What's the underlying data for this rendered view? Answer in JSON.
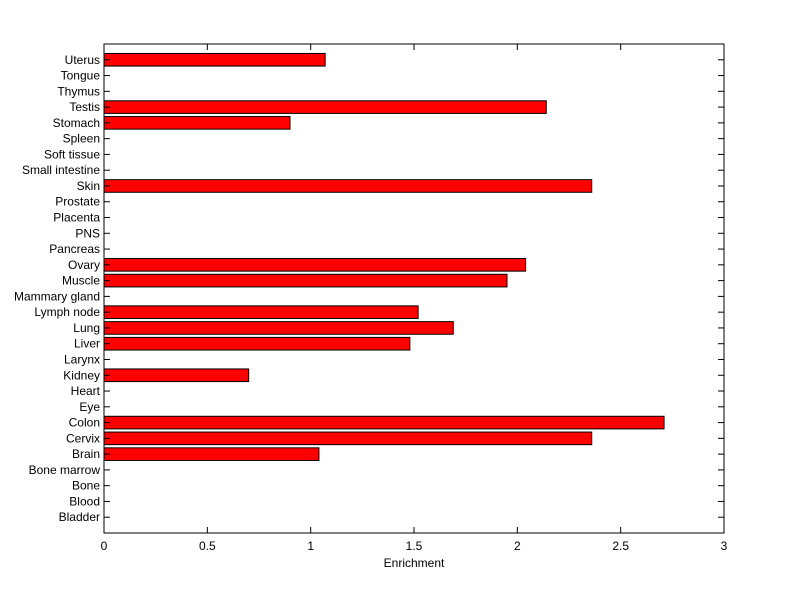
{
  "chart_data": {
    "type": "bar",
    "orientation": "horizontal",
    "xlabel": "Enrichment",
    "ylabel": "",
    "xlim": [
      0,
      3
    ],
    "xticks": [
      0,
      0.5,
      1,
      1.5,
      2,
      2.5,
      3
    ],
    "xtick_labels": [
      "0",
      "0.5",
      "1",
      "1.5",
      "2",
      "2.5",
      "3"
    ],
    "grid": false,
    "bar_color": "#ff0000",
    "categories": [
      "Bladder",
      "Blood",
      "Bone",
      "Bone marrow",
      "Brain",
      "Cervix",
      "Colon",
      "Eye",
      "Heart",
      "Kidney",
      "Larynx",
      "Liver",
      "Lung",
      "Lymph node",
      "Mammary gland",
      "Muscle",
      "Ovary",
      "Pancreas",
      "PNS",
      "Placenta",
      "Prostate",
      "Skin",
      "Small intestine",
      "Soft tissue",
      "Spleen",
      "Stomach",
      "Testis",
      "Thymus",
      "Tongue",
      "Uterus"
    ],
    "values": [
      0,
      0,
      0,
      0,
      1.04,
      2.36,
      2.71,
      0,
      0,
      0.7,
      0,
      1.48,
      1.69,
      1.52,
      0,
      1.95,
      2.04,
      0,
      0,
      0,
      0,
      2.36,
      0,
      0,
      0,
      0.9,
      2.14,
      0,
      0,
      1.07
    ]
  }
}
